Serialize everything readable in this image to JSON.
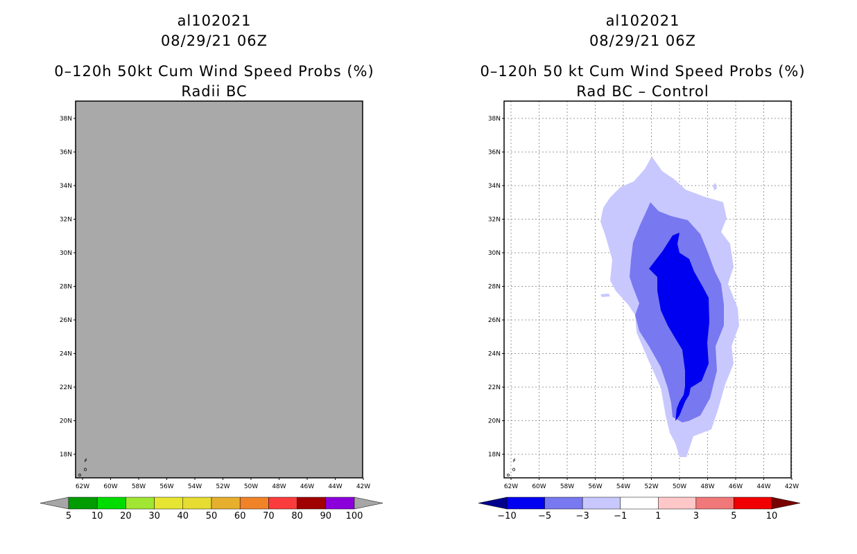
{
  "left_panel": {
    "storm_id": "al102021",
    "datetime": "08/29/21 06Z",
    "title": "0–120h 50kt Cum Wind Speed Probs (%)",
    "subtitle": "Radii BC",
    "background_color": "#a9a9a9",
    "lat_labels": [
      "38N",
      "36N",
      "34N",
      "32N",
      "30N",
      "28N",
      "26N",
      "24N",
      "22N",
      "20N",
      "18N"
    ],
    "lon_labels": [
      "62W",
      "60W",
      "58W",
      "56W",
      "54W",
      "52W",
      "50W",
      "48W",
      "46W",
      "44W",
      "42W"
    ],
    "colorbar": {
      "labels": [
        "5",
        "10",
        "20",
        "30",
        "40",
        "50",
        "60",
        "70",
        "80",
        "90",
        "100"
      ],
      "colors": [
        "#a6a6a6",
        "#009c00",
        "#00dc00",
        "#a0e632",
        "#e6e632",
        "#e6dc32",
        "#e6af2d",
        "#f08228",
        "#fa3c3c",
        "#a00000",
        "#8c00dc",
        "#a6a6a6"
      ]
    }
  },
  "right_panel": {
    "storm_id": "al102021",
    "datetime": "08/29/21 06Z",
    "title": "0–120h 50 kt Cum Wind Speed Probs (%)",
    "subtitle": "Rad BC – Control",
    "lat_labels": [
      "38N",
      "36N",
      "34N",
      "32N",
      "30N",
      "28N",
      "26N",
      "24N",
      "22N",
      "20N",
      "18N"
    ],
    "lon_labels": [
      "62W",
      "60W",
      "58W",
      "56W",
      "54W",
      "52W",
      "50W",
      "48W",
      "46W",
      "44W",
      "42W"
    ],
    "contour_colors": {
      "outer": "#c8c8ff",
      "middle": "#7878f0",
      "inner": "#0000f0"
    },
    "colorbar": {
      "labels": [
        "−10",
        "−5",
        "−3",
        "−1",
        "1",
        "3",
        "5",
        "10"
      ],
      "colors": [
        "#00008c",
        "#0000f0",
        "#7878f0",
        "#c8c8ff",
        "#ffffff",
        "#ffc8c8",
        "#f07878",
        "#f00000",
        "#780000"
      ]
    }
  }
}
